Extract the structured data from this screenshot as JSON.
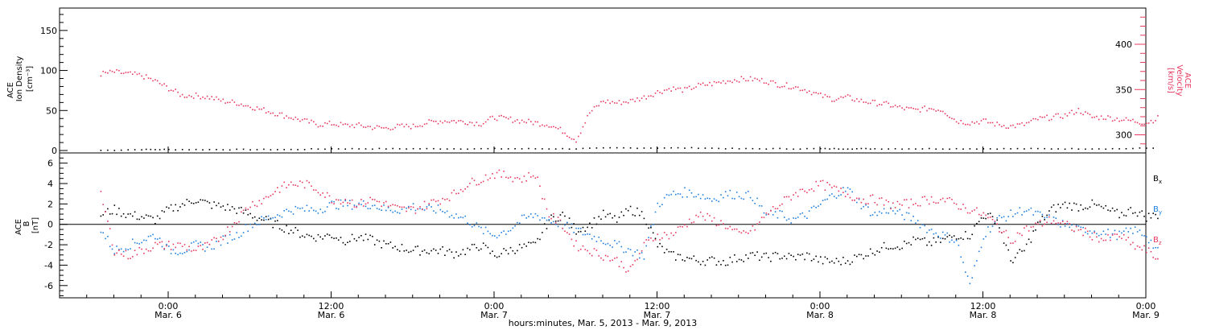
{
  "colors": {
    "velocity": "#e8385f",
    "density": "#000000",
    "bx": "#000000",
    "by": "#1f7fe0",
    "bz": "#e8385f",
    "axis": "#000000"
  },
  "chart_data": [
    {
      "type": "scatter",
      "panel": "top",
      "ylabel_left": [
        "ACE",
        "Ion Density",
        "[cm⁻³]"
      ],
      "ylabel_right": [
        "ACE",
        "Velocity",
        "[km/s]"
      ],
      "ylim_left": [
        -3,
        178
      ],
      "ylim_right": [
        280,
        440
      ],
      "yticks_left": [
        0,
        50,
        100,
        150
      ],
      "yticks_right": [
        300,
        350,
        400
      ],
      "grid": false,
      "series": [
        {
          "key": "density",
          "axis": "left",
          "x": [
            -5,
            -2,
            0,
            3,
            6,
            9,
            12,
            15,
            18,
            21,
            24,
            27,
            30,
            33,
            36,
            39,
            42,
            45,
            48,
            50,
            52,
            55,
            58,
            61,
            64,
            67,
            70,
            73
          ],
          "y": [
            1,
            2,
            2,
            2,
            2,
            2,
            3,
            3,
            3,
            3,
            3,
            3,
            3,
            4,
            4,
            4,
            3,
            3,
            3,
            3,
            3,
            3,
            3,
            3,
            3,
            3,
            3,
            4
          ]
        },
        {
          "key": "velocity",
          "axis": "right",
          "x": [
            -5,
            -4,
            -3,
            -2,
            -1,
            0,
            1,
            2,
            3,
            4,
            5,
            6,
            7,
            8,
            9,
            10,
            11,
            12,
            13,
            14,
            15,
            16,
            17,
            18,
            19,
            20,
            21,
            22,
            23,
            24,
            25,
            26,
            27,
            28,
            29,
            30,
            31,
            32,
            33,
            34,
            35,
            36,
            37,
            38,
            39,
            40,
            41,
            42,
            43,
            44,
            45,
            46,
            47,
            48,
            49,
            50,
            51,
            52,
            53,
            54,
            55,
            56,
            57,
            58,
            59,
            60,
            61,
            62,
            63,
            64,
            65,
            66,
            67,
            68,
            69,
            70,
            71,
            72,
            73
          ],
          "y": [
            368,
            370,
            368,
            366,
            360,
            352,
            344,
            344,
            342,
            338,
            336,
            332,
            328,
            324,
            320,
            316,
            312,
            313,
            311,
            311,
            309,
            308,
            310,
            310,
            314,
            316,
            316,
            315,
            313,
            320,
            318,
            316,
            314,
            312,
            305,
            295,
            325,
            338,
            336,
            338,
            342,
            348,
            352,
            350,
            355,
            357,
            360,
            362,
            362,
            360,
            356,
            354,
            350,
            344,
            340,
            342,
            338,
            336,
            334,
            330,
            328,
            330,
            328,
            316,
            314,
            316,
            312,
            310,
            312,
            318,
            320,
            322,
            328,
            320,
            320,
            318,
            316,
            314,
            320
          ]
        }
      ]
    },
    {
      "type": "scatter",
      "panel": "bottom",
      "ylabel": [
        "ACE",
        "B",
        "[nT]"
      ],
      "ylim": [
        -7.2,
        7.0
      ],
      "yticks": [
        -6,
        -4,
        -2,
        0,
        2,
        4,
        6
      ],
      "grid": false,
      "series": [
        {
          "key": "bx",
          "name": "Bx",
          "x": [
            -5,
            -4,
            -3,
            -2,
            -1,
            0,
            1,
            2,
            3,
            4,
            5,
            6,
            7,
            8,
            9,
            10,
            11,
            12,
            13,
            14,
            15,
            16,
            17,
            18,
            19,
            20,
            21,
            22,
            23,
            24,
            25,
            26,
            27,
            28,
            29,
            30,
            31,
            32,
            33,
            34,
            35,
            36,
            37,
            38,
            39,
            40,
            41,
            42,
            43,
            44,
            45,
            46,
            47,
            48,
            49,
            50,
            51,
            52,
            53,
            54,
            55,
            56,
            57,
            58,
            59,
            60,
            61,
            62,
            63,
            64,
            65,
            66,
            67,
            68,
            69,
            70,
            71,
            72,
            73
          ],
          "y": [
            1.0,
            1.5,
            1.0,
            0.8,
            0.5,
            1.5,
            2.0,
            2.5,
            2.0,
            1.8,
            1.5,
            1.0,
            0.5,
            0.0,
            -0.5,
            -1.0,
            -1.2,
            -1.0,
            -1.5,
            -1.2,
            -1.5,
            -2.0,
            -2.2,
            -2.5,
            -2.5,
            -2.5,
            -2.8,
            -2.5,
            -2.0,
            -3.0,
            -2.5,
            -2.2,
            -2.0,
            0.5,
            1.0,
            -0.5,
            0.0,
            1.0,
            0.5,
            1.5,
            1.0,
            -2.0,
            -3.0,
            -3.2,
            -3.5,
            -3.5,
            -3.6,
            -3.2,
            -3.0,
            -3.2,
            -3.0,
            -3.2,
            -3.0,
            -3.5,
            -3.6,
            -3.5,
            -3.0,
            -2.5,
            -2.0,
            -2.0,
            -1.5,
            -1.8,
            -1.5,
            -1.0,
            -1.0,
            1.0,
            0.5,
            -3.5,
            -2.5,
            0.0,
            1.5,
            2.0,
            1.8,
            2.0,
            1.5,
            1.0,
            1.5,
            0.8,
            1.0
          ]
        },
        {
          "key": "by",
          "name": "By",
          "x": [
            -5,
            -4,
            -3,
            -2,
            -1,
            0,
            1,
            2,
            3,
            4,
            5,
            6,
            7,
            8,
            9,
            10,
            11,
            12,
            13,
            14,
            15,
            16,
            17,
            18,
            19,
            20,
            21,
            22,
            23,
            24,
            25,
            26,
            27,
            28,
            29,
            30,
            31,
            32,
            33,
            34,
            35,
            36,
            37,
            38,
            39,
            40,
            41,
            42,
            43,
            44,
            45,
            46,
            47,
            48,
            49,
            50,
            51,
            52,
            53,
            54,
            55,
            56,
            57,
            58,
            59,
            60,
            61,
            62,
            63,
            64,
            65,
            66,
            67,
            68,
            69,
            70,
            71,
            72,
            73
          ],
          "y": [
            -0.5,
            -2.5,
            -2.0,
            -1.5,
            -1.0,
            -2.5,
            -2.5,
            -2.0,
            -2.2,
            -1.5,
            -1.0,
            0.0,
            0.5,
            1.0,
            1.5,
            1.5,
            1.5,
            2.0,
            2.0,
            2.0,
            2.0,
            1.5,
            1.5,
            1.8,
            1.5,
            1.5,
            1.0,
            0.5,
            -0.5,
            -1.0,
            -0.5,
            0.5,
            1.0,
            0.5,
            0.0,
            -0.5,
            -1.0,
            -1.5,
            -2.0,
            -2.5,
            -3.0,
            2.0,
            3.0,
            3.2,
            3.0,
            2.5,
            3.0,
            3.0,
            2.8,
            1.0,
            1.0,
            0.5,
            1.0,
            2.0,
            3.0,
            3.5,
            2.0,
            1.0,
            1.5,
            1.0,
            0.5,
            -0.5,
            -1.0,
            -1.5,
            -6.0,
            -1.0,
            0.5,
            1.0,
            1.5,
            1.0,
            0.5,
            0.0,
            -0.5,
            -0.5,
            -0.8,
            -1.0,
            -0.5,
            -1.0,
            -3.0
          ]
        },
        {
          "key": "bz",
          "name": "Bz",
          "x": [
            -5,
            -4,
            -3,
            -2,
            -1,
            0,
            1,
            2,
            3,
            4,
            5,
            6,
            7,
            8,
            9,
            10,
            11,
            12,
            13,
            14,
            15,
            16,
            17,
            18,
            19,
            20,
            21,
            22,
            23,
            24,
            25,
            26,
            27,
            28,
            29,
            30,
            31,
            32,
            33,
            34,
            35,
            36,
            37,
            38,
            39,
            40,
            41,
            42,
            43,
            44,
            45,
            46,
            47,
            48,
            49,
            50,
            51,
            52,
            53,
            54,
            55,
            56,
            57,
            58,
            59,
            60,
            61,
            62,
            63,
            64,
            65,
            66,
            67,
            68,
            69,
            70,
            71,
            72,
            73
          ],
          "y": [
            3.0,
            -2.5,
            -3.0,
            -2.5,
            -2.0,
            -2.0,
            -2.0,
            -2.5,
            -2.0,
            -1.0,
            0.5,
            2.0,
            2.5,
            3.5,
            4.0,
            4.0,
            3.5,
            2.5,
            2.5,
            2.0,
            2.5,
            2.0,
            1.5,
            1.5,
            2.0,
            2.5,
            3.0,
            4.0,
            4.5,
            5.0,
            4.8,
            4.5,
            5.0,
            1.0,
            0.0,
            -2.0,
            -2.5,
            -3.0,
            -3.5,
            -4.5,
            -2.0,
            -1.0,
            -1.0,
            0.0,
            1.0,
            0.5,
            0.0,
            -1.0,
            -0.5,
            1.0,
            2.0,
            3.0,
            3.5,
            4.0,
            3.5,
            3.0,
            2.5,
            2.5,
            2.0,
            2.0,
            2.2,
            2.5,
            2.5,
            2.0,
            1.5,
            1.0,
            0.0,
            -1.5,
            -0.5,
            0.0,
            0.5,
            0.0,
            -0.5,
            -1.0,
            -1.5,
            -1.0,
            -2.0,
            -2.5,
            -3.5
          ]
        }
      ],
      "legend": [
        {
          "key": "bx",
          "label": "B",
          "sub": "x"
        },
        {
          "key": "by",
          "label": "B",
          "sub": "y"
        },
        {
          "key": "bz",
          "label": "B",
          "sub": "z"
        }
      ],
      "legend_placement": "right"
    }
  ],
  "x_axis": {
    "xlim_hours": [
      -8,
      72
    ],
    "ticks": [
      {
        "hour": 0,
        "time": "0:00",
        "date": "Mar. 6"
      },
      {
        "hour": 12,
        "time": "12:00",
        "date": "Mar. 6"
      },
      {
        "hour": 24,
        "time": "0:00",
        "date": "Mar. 7"
      },
      {
        "hour": 36,
        "time": "12:00",
        "date": "Mar. 7"
      },
      {
        "hour": 48,
        "time": "0:00",
        "date": "Mar. 8"
      },
      {
        "hour": 60,
        "time": "12:00",
        "date": "Mar. 8"
      },
      {
        "hour": 72,
        "time": "0:00",
        "date": "Mar. 9"
      }
    ],
    "title": "hours:minutes, Mar. 5, 2013 - Mar. 9, 2013"
  }
}
